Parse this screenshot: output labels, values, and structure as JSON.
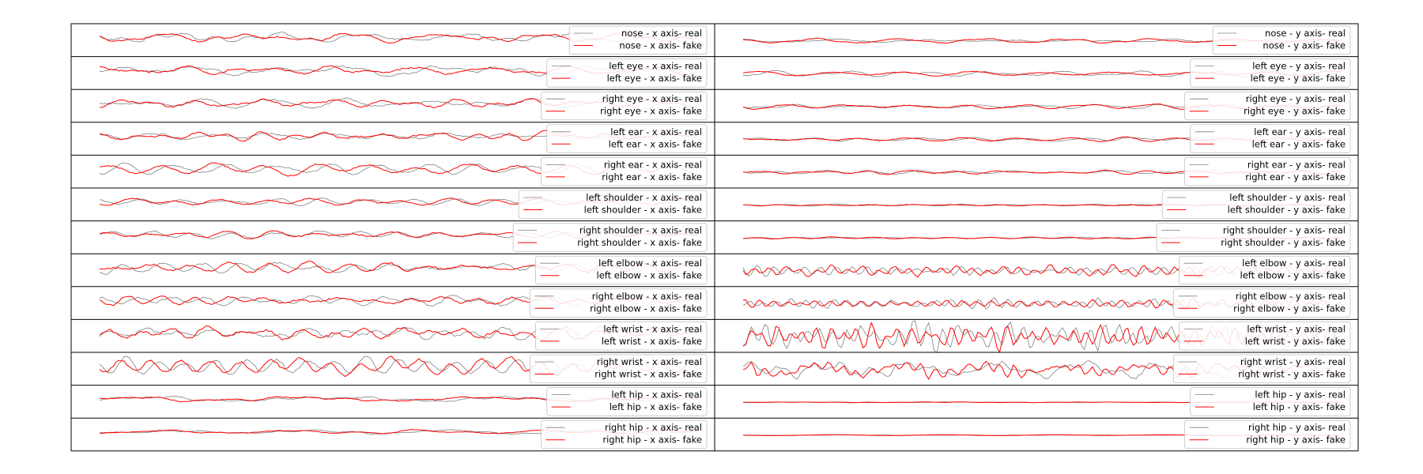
{
  "chart_data": {
    "type": "line",
    "grid": false,
    "legend_placement": "right",
    "colors": {
      "real": "#808080",
      "fake": "#ff0000",
      "frame": "#000000",
      "legend_border": "#cccccc"
    },
    "panels": [
      {
        "column": "x",
        "keypoint": "nose",
        "series": [
          {
            "name": "nose - x axis- real"
          },
          {
            "name": "nose - x axis- fake"
          }
        ]
      },
      {
        "column": "y",
        "keypoint": "nose",
        "series": [
          {
            "name": "nose - y axis- real"
          },
          {
            "name": "nose - y axis- fake"
          }
        ]
      },
      {
        "column": "x",
        "keypoint": "left eye",
        "series": [
          {
            "name": "left eye - x axis- real"
          },
          {
            "name": "left eye - x axis- fake"
          }
        ]
      },
      {
        "column": "y",
        "keypoint": "left eye",
        "series": [
          {
            "name": "left eye - y axis- real"
          },
          {
            "name": "left eye - y axis- fake"
          }
        ]
      },
      {
        "column": "x",
        "keypoint": "right eye",
        "series": [
          {
            "name": "right eye - x axis- real"
          },
          {
            "name": "right eye - x axis- fake"
          }
        ]
      },
      {
        "column": "y",
        "keypoint": "right eye",
        "series": [
          {
            "name": "right eye - y axis- real"
          },
          {
            "name": "right eye - y axis- fake"
          }
        ]
      },
      {
        "column": "x",
        "keypoint": "left ear",
        "series": [
          {
            "name": "left ear - x axis- real"
          },
          {
            "name": "left ear - x axis- fake"
          }
        ]
      },
      {
        "column": "y",
        "keypoint": "left ear",
        "series": [
          {
            "name": "left ear - y axis- real"
          },
          {
            "name": "left ear - y axis- fake"
          }
        ]
      },
      {
        "column": "x",
        "keypoint": "right ear",
        "series": [
          {
            "name": "right ear - x axis- real"
          },
          {
            "name": "right ear - x axis- fake"
          }
        ]
      },
      {
        "column": "y",
        "keypoint": "right ear",
        "series": [
          {
            "name": "right ear - y axis- real"
          },
          {
            "name": "right ear - y axis- fake"
          }
        ]
      },
      {
        "column": "x",
        "keypoint": "left shoulder",
        "series": [
          {
            "name": "left shoulder - x axis- real"
          },
          {
            "name": "left shoulder - x axis- fake"
          }
        ]
      },
      {
        "column": "y",
        "keypoint": "left shoulder",
        "series": [
          {
            "name": "left shoulder - y axis- real"
          },
          {
            "name": "left shoulder - y axis- fake"
          }
        ]
      },
      {
        "column": "x",
        "keypoint": "right shoulder",
        "series": [
          {
            "name": "right shoulder - x axis- real"
          },
          {
            "name": "right shoulder - x axis- fake"
          }
        ]
      },
      {
        "column": "y",
        "keypoint": "right shoulder",
        "series": [
          {
            "name": "right shoulder - y axis- real"
          },
          {
            "name": "right shoulder - y axis- fake"
          }
        ]
      },
      {
        "column": "x",
        "keypoint": "left elbow",
        "series": [
          {
            "name": "left elbow - x axis- real"
          },
          {
            "name": "left elbow - x axis- fake"
          }
        ]
      },
      {
        "column": "y",
        "keypoint": "left elbow",
        "series": [
          {
            "name": "left elbow - y axis- real"
          },
          {
            "name": "left elbow - y axis- fake"
          }
        ]
      },
      {
        "column": "x",
        "keypoint": "right elbow",
        "series": [
          {
            "name": "right elbow - x axis- real"
          },
          {
            "name": "right elbow - x axis- fake"
          }
        ]
      },
      {
        "column": "y",
        "keypoint": "right elbow",
        "series": [
          {
            "name": "right elbow - y axis- real"
          },
          {
            "name": "right elbow - y axis- fake"
          }
        ]
      },
      {
        "column": "x",
        "keypoint": "left wrist",
        "series": [
          {
            "name": "left wrist - x axis- real"
          },
          {
            "name": "left wrist - x axis- fake"
          }
        ]
      },
      {
        "column": "y",
        "keypoint": "left wrist",
        "series": [
          {
            "name": "left wrist - y axis- real"
          },
          {
            "name": "left wrist - y axis- fake"
          }
        ]
      },
      {
        "column": "x",
        "keypoint": "right wrist",
        "series": [
          {
            "name": "right wrist - x axis- real"
          },
          {
            "name": "right wrist - x axis- fake"
          }
        ]
      },
      {
        "column": "y",
        "keypoint": "right wrist",
        "series": [
          {
            "name": "right wrist - y axis- real"
          },
          {
            "name": "right wrist - y axis- fake"
          }
        ]
      },
      {
        "column": "x",
        "keypoint": "left hip",
        "series": [
          {
            "name": "left hip - x axis- real"
          },
          {
            "name": "left hip - x axis- fake"
          }
        ]
      },
      {
        "column": "y",
        "keypoint": "left hip",
        "series": [
          {
            "name": "left hip - y axis- real"
          },
          {
            "name": "left hip - y axis- fake"
          }
        ]
      },
      {
        "column": "x",
        "keypoint": "right hip",
        "series": [
          {
            "name": "right hip - x axis- real"
          },
          {
            "name": "right hip - x axis- fake"
          }
        ]
      },
      {
        "column": "y",
        "keypoint": "right hip",
        "series": [
          {
            "name": "right hip - y axis- real"
          },
          {
            "name": "right hip - y axis- fake"
          }
        ]
      }
    ]
  }
}
